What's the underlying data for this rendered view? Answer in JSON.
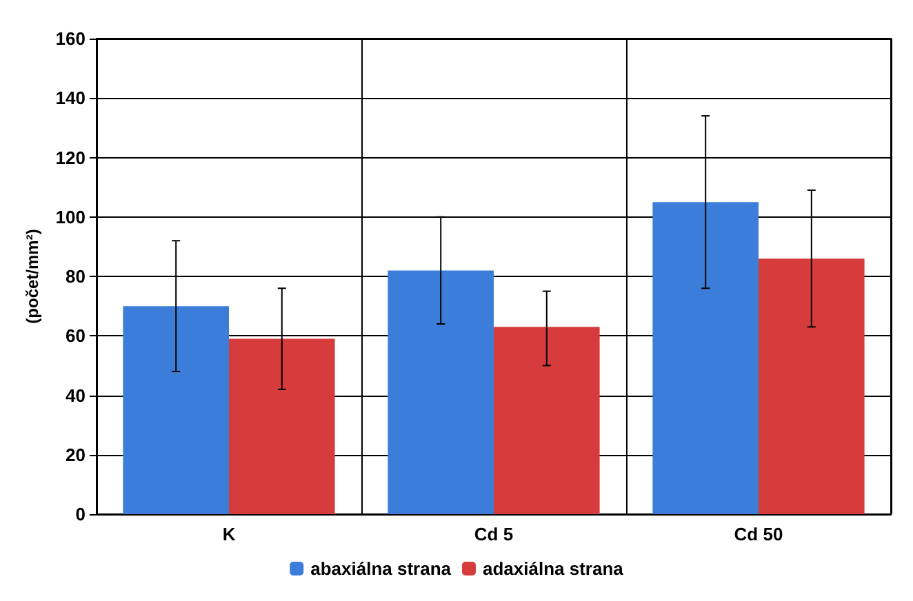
{
  "chart_data": {
    "type": "bar",
    "ylabel": "(počet/mm²)",
    "categories": [
      "K",
      "Cd 5",
      "Cd 50"
    ],
    "series": [
      {
        "name": "abaxiálna strana",
        "color": "#3b7dd8",
        "values": [
          70,
          82,
          105
        ],
        "errors": [
          [
            48,
            92
          ],
          [
            64,
            100
          ],
          [
            76,
            134
          ]
        ]
      },
      {
        "name": "adaxiálna strana",
        "color": "#d63c3c",
        "values": [
          59,
          63,
          86
        ],
        "errors": [
          [
            42,
            76
          ],
          [
            50,
            75
          ],
          [
            63,
            109
          ]
        ]
      }
    ],
    "ylim": [
      0,
      160
    ],
    "yticks": [
      0,
      20,
      40,
      60,
      80,
      100,
      120,
      140,
      160
    ],
    "grid": true,
    "legend": "bottom"
  }
}
